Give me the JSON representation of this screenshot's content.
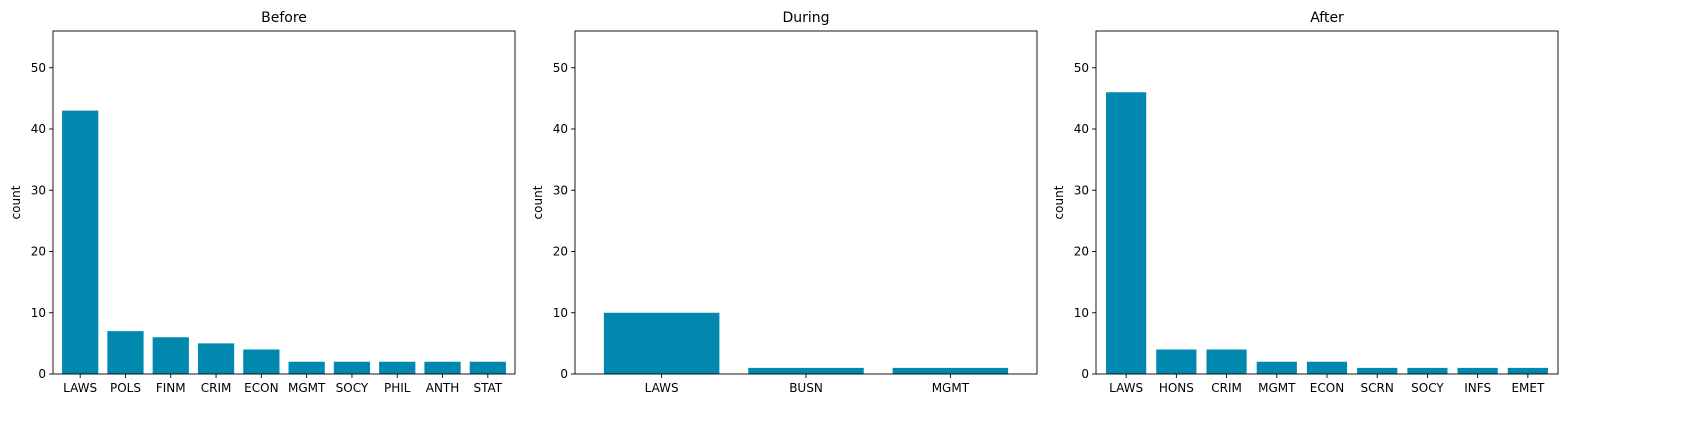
{
  "chart_data": [
    {
      "type": "bar",
      "title": "Before",
      "xlabel": "",
      "ylabel": "count",
      "ylim": [
        0,
        56
      ],
      "yticks": [
        0,
        10,
        20,
        30,
        40,
        50
      ],
      "grid": false,
      "bar_color": "#0088ae",
      "categories": [
        "LAWS",
        "POLS",
        "FINM",
        "CRIM",
        "ECON",
        "MGMT",
        "SOCY",
        "PHIL",
        "ANTH",
        "STAT"
      ],
      "values": [
        43,
        7,
        6,
        5,
        4,
        2,
        2,
        2,
        2,
        2
      ]
    },
    {
      "type": "bar",
      "title": "During",
      "xlabel": "",
      "ylabel": "count",
      "ylim": [
        0,
        56
      ],
      "yticks": [
        0,
        10,
        20,
        30,
        40,
        50
      ],
      "grid": false,
      "bar_color": "#0088ae",
      "categories": [
        "LAWS",
        "BUSN",
        "MGMT"
      ],
      "values": [
        10,
        1,
        1
      ]
    },
    {
      "type": "bar",
      "title": "After",
      "xlabel": "",
      "ylabel": "count",
      "ylim": [
        0,
        56
      ],
      "yticks": [
        0,
        10,
        20,
        30,
        40,
        50
      ],
      "grid": false,
      "bar_color": "#0088ae",
      "categories": [
        "LAWS",
        "HONS",
        "CRIM",
        "MGMT",
        "ECON",
        "SCRN",
        "SOCY",
        "INFS",
        "EMET"
      ],
      "values": [
        46,
        4,
        4,
        2,
        2,
        1,
        1,
        1,
        1
      ]
    }
  ]
}
